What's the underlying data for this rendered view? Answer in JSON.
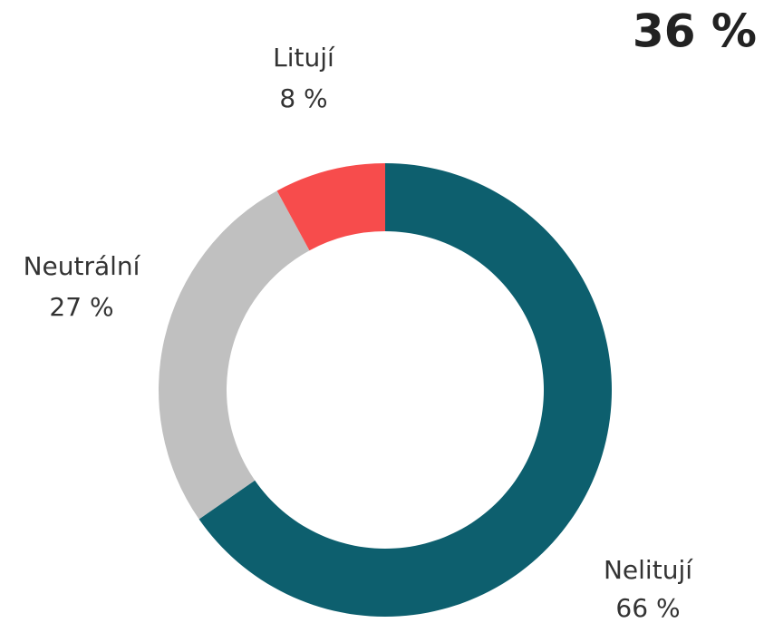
{
  "chart_data": {
    "type": "pie",
    "annotation": "36 %",
    "categories": [
      "Nelitují",
      "Neutrální",
      "Litují"
    ],
    "values": [
      66,
      27,
      8
    ],
    "value_labels": [
      "66 %",
      "27 %",
      "8 %"
    ],
    "colors": [
      "#0d5f6e",
      "#c0c0c0",
      "#f74c4c"
    ],
    "donut": true
  }
}
